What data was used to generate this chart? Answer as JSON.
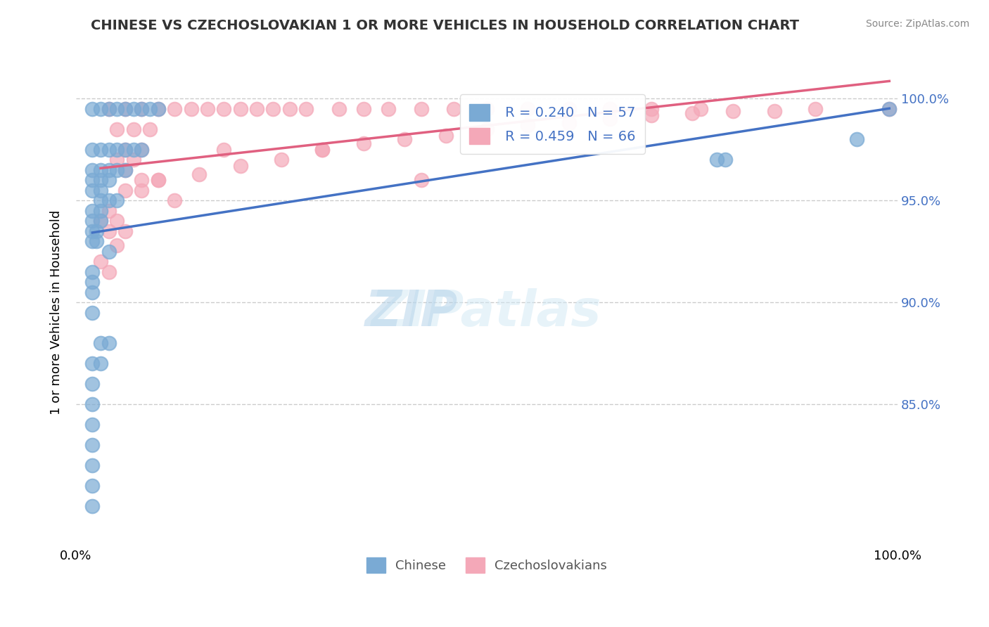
{
  "title": "CHINESE VS CZECHOSLOVAKIAN 1 OR MORE VEHICLES IN HOUSEHOLD CORRELATION CHART",
  "source": "Source: ZipAtlas.com",
  "xlabel": "",
  "ylabel": "1 or more Vehicles in Household",
  "xlim": [
    0,
    1
  ],
  "ylim": [
    0,
    1
  ],
  "x_tick_labels": [
    "0.0%",
    "100.0%"
  ],
  "y_tick_labels": [
    "85.0%",
    "90.0%",
    "95.0%",
    "100.0%"
  ],
  "background_color": "#ffffff",
  "watermark": "ZIPatlas",
  "legend_R_chinese": "R = 0.240",
  "legend_N_chinese": "N = 57",
  "legend_R_czech": "R = 0.459",
  "legend_N_czech": "N = 66",
  "chinese_color": "#7aaad4",
  "czech_color": "#f4a8b8",
  "chinese_scatter_x": [
    0.02,
    0.03,
    0.04,
    0.05,
    0.06,
    0.07,
    0.08,
    0.09,
    0.1,
    0.02,
    0.03,
    0.04,
    0.05,
    0.06,
    0.07,
    0.08,
    0.02,
    0.03,
    0.04,
    0.05,
    0.06,
    0.02,
    0.03,
    0.04,
    0.02,
    0.03,
    0.03,
    0.04,
    0.05,
    0.02,
    0.03,
    0.02,
    0.03,
    0.02,
    0.025,
    0.02,
    0.025,
    0.04,
    0.02,
    0.02,
    0.02,
    0.02,
    0.03,
    0.04,
    0.02,
    0.03,
    0.02,
    0.02,
    0.02,
    0.02,
    0.02,
    0.02,
    0.02,
    0.99,
    0.95,
    0.78,
    0.79
  ],
  "chinese_scatter_y": [
    0.995,
    0.995,
    0.995,
    0.995,
    0.995,
    0.995,
    0.995,
    0.995,
    0.995,
    0.975,
    0.975,
    0.975,
    0.975,
    0.975,
    0.975,
    0.975,
    0.965,
    0.965,
    0.965,
    0.965,
    0.965,
    0.96,
    0.96,
    0.96,
    0.955,
    0.955,
    0.95,
    0.95,
    0.95,
    0.945,
    0.945,
    0.94,
    0.94,
    0.935,
    0.935,
    0.93,
    0.93,
    0.925,
    0.915,
    0.91,
    0.905,
    0.895,
    0.88,
    0.88,
    0.87,
    0.87,
    0.86,
    0.85,
    0.84,
    0.83,
    0.82,
    0.81,
    0.8,
    0.995,
    0.98,
    0.97,
    0.97
  ],
  "czech_scatter_x": [
    0.04,
    0.06,
    0.08,
    0.1,
    0.12,
    0.14,
    0.16,
    0.18,
    0.2,
    0.22,
    0.24,
    0.26,
    0.28,
    0.32,
    0.35,
    0.38,
    0.42,
    0.46,
    0.5,
    0.55,
    0.6,
    0.65,
    0.7,
    0.05,
    0.07,
    0.09,
    0.06,
    0.08,
    0.05,
    0.07,
    0.06,
    0.08,
    0.1,
    0.06,
    0.12,
    0.04,
    0.03,
    0.05,
    0.04,
    0.06,
    0.05,
    0.03,
    0.04,
    0.3,
    0.42,
    0.76,
    0.99,
    0.08,
    0.1,
    0.15,
    0.2,
    0.25,
    0.18,
    0.3,
    0.35,
    0.4,
    0.45,
    0.5,
    0.55,
    0.6,
    0.65,
    0.7,
    0.75,
    0.8,
    0.85,
    0.9
  ],
  "czech_scatter_y": [
    0.995,
    0.995,
    0.995,
    0.995,
    0.995,
    0.995,
    0.995,
    0.995,
    0.995,
    0.995,
    0.995,
    0.995,
    0.995,
    0.995,
    0.995,
    0.995,
    0.995,
    0.995,
    0.995,
    0.995,
    0.995,
    0.995,
    0.995,
    0.985,
    0.985,
    0.985,
    0.975,
    0.975,
    0.97,
    0.97,
    0.965,
    0.96,
    0.96,
    0.955,
    0.95,
    0.945,
    0.94,
    0.94,
    0.935,
    0.935,
    0.928,
    0.92,
    0.915,
    0.975,
    0.96,
    0.995,
    0.995,
    0.955,
    0.96,
    0.963,
    0.967,
    0.97,
    0.975,
    0.975,
    0.978,
    0.98,
    0.982,
    0.985,
    0.987,
    0.988,
    0.99,
    0.992,
    0.993,
    0.994,
    0.994,
    0.995
  ]
}
